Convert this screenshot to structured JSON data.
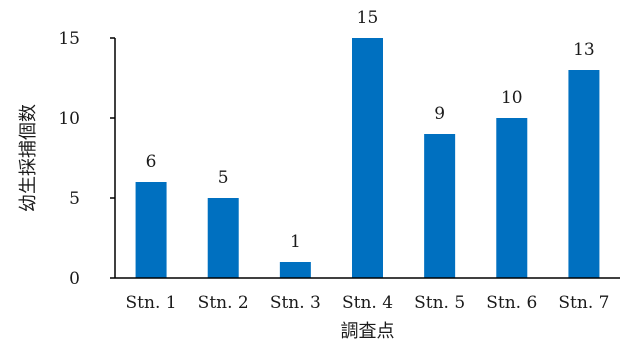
{
  "chart_data": {
    "type": "bar",
    "title": "",
    "xlabel": "調査点",
    "ylabel": "幼生採捕個数",
    "categories": [
      "Stn. 1",
      "Stn. 2",
      "Stn. 3",
      "Stn. 4",
      "Stn. 5",
      "Stn. 6",
      "Stn. 7"
    ],
    "values": [
      6,
      5,
      1,
      15,
      9,
      10,
      13
    ],
    "ylim": [
      0,
      15
    ],
    "yticks": [
      0,
      5,
      10,
      15
    ],
    "bar_color": "#0070C0",
    "grid": false,
    "legend": "none"
  }
}
